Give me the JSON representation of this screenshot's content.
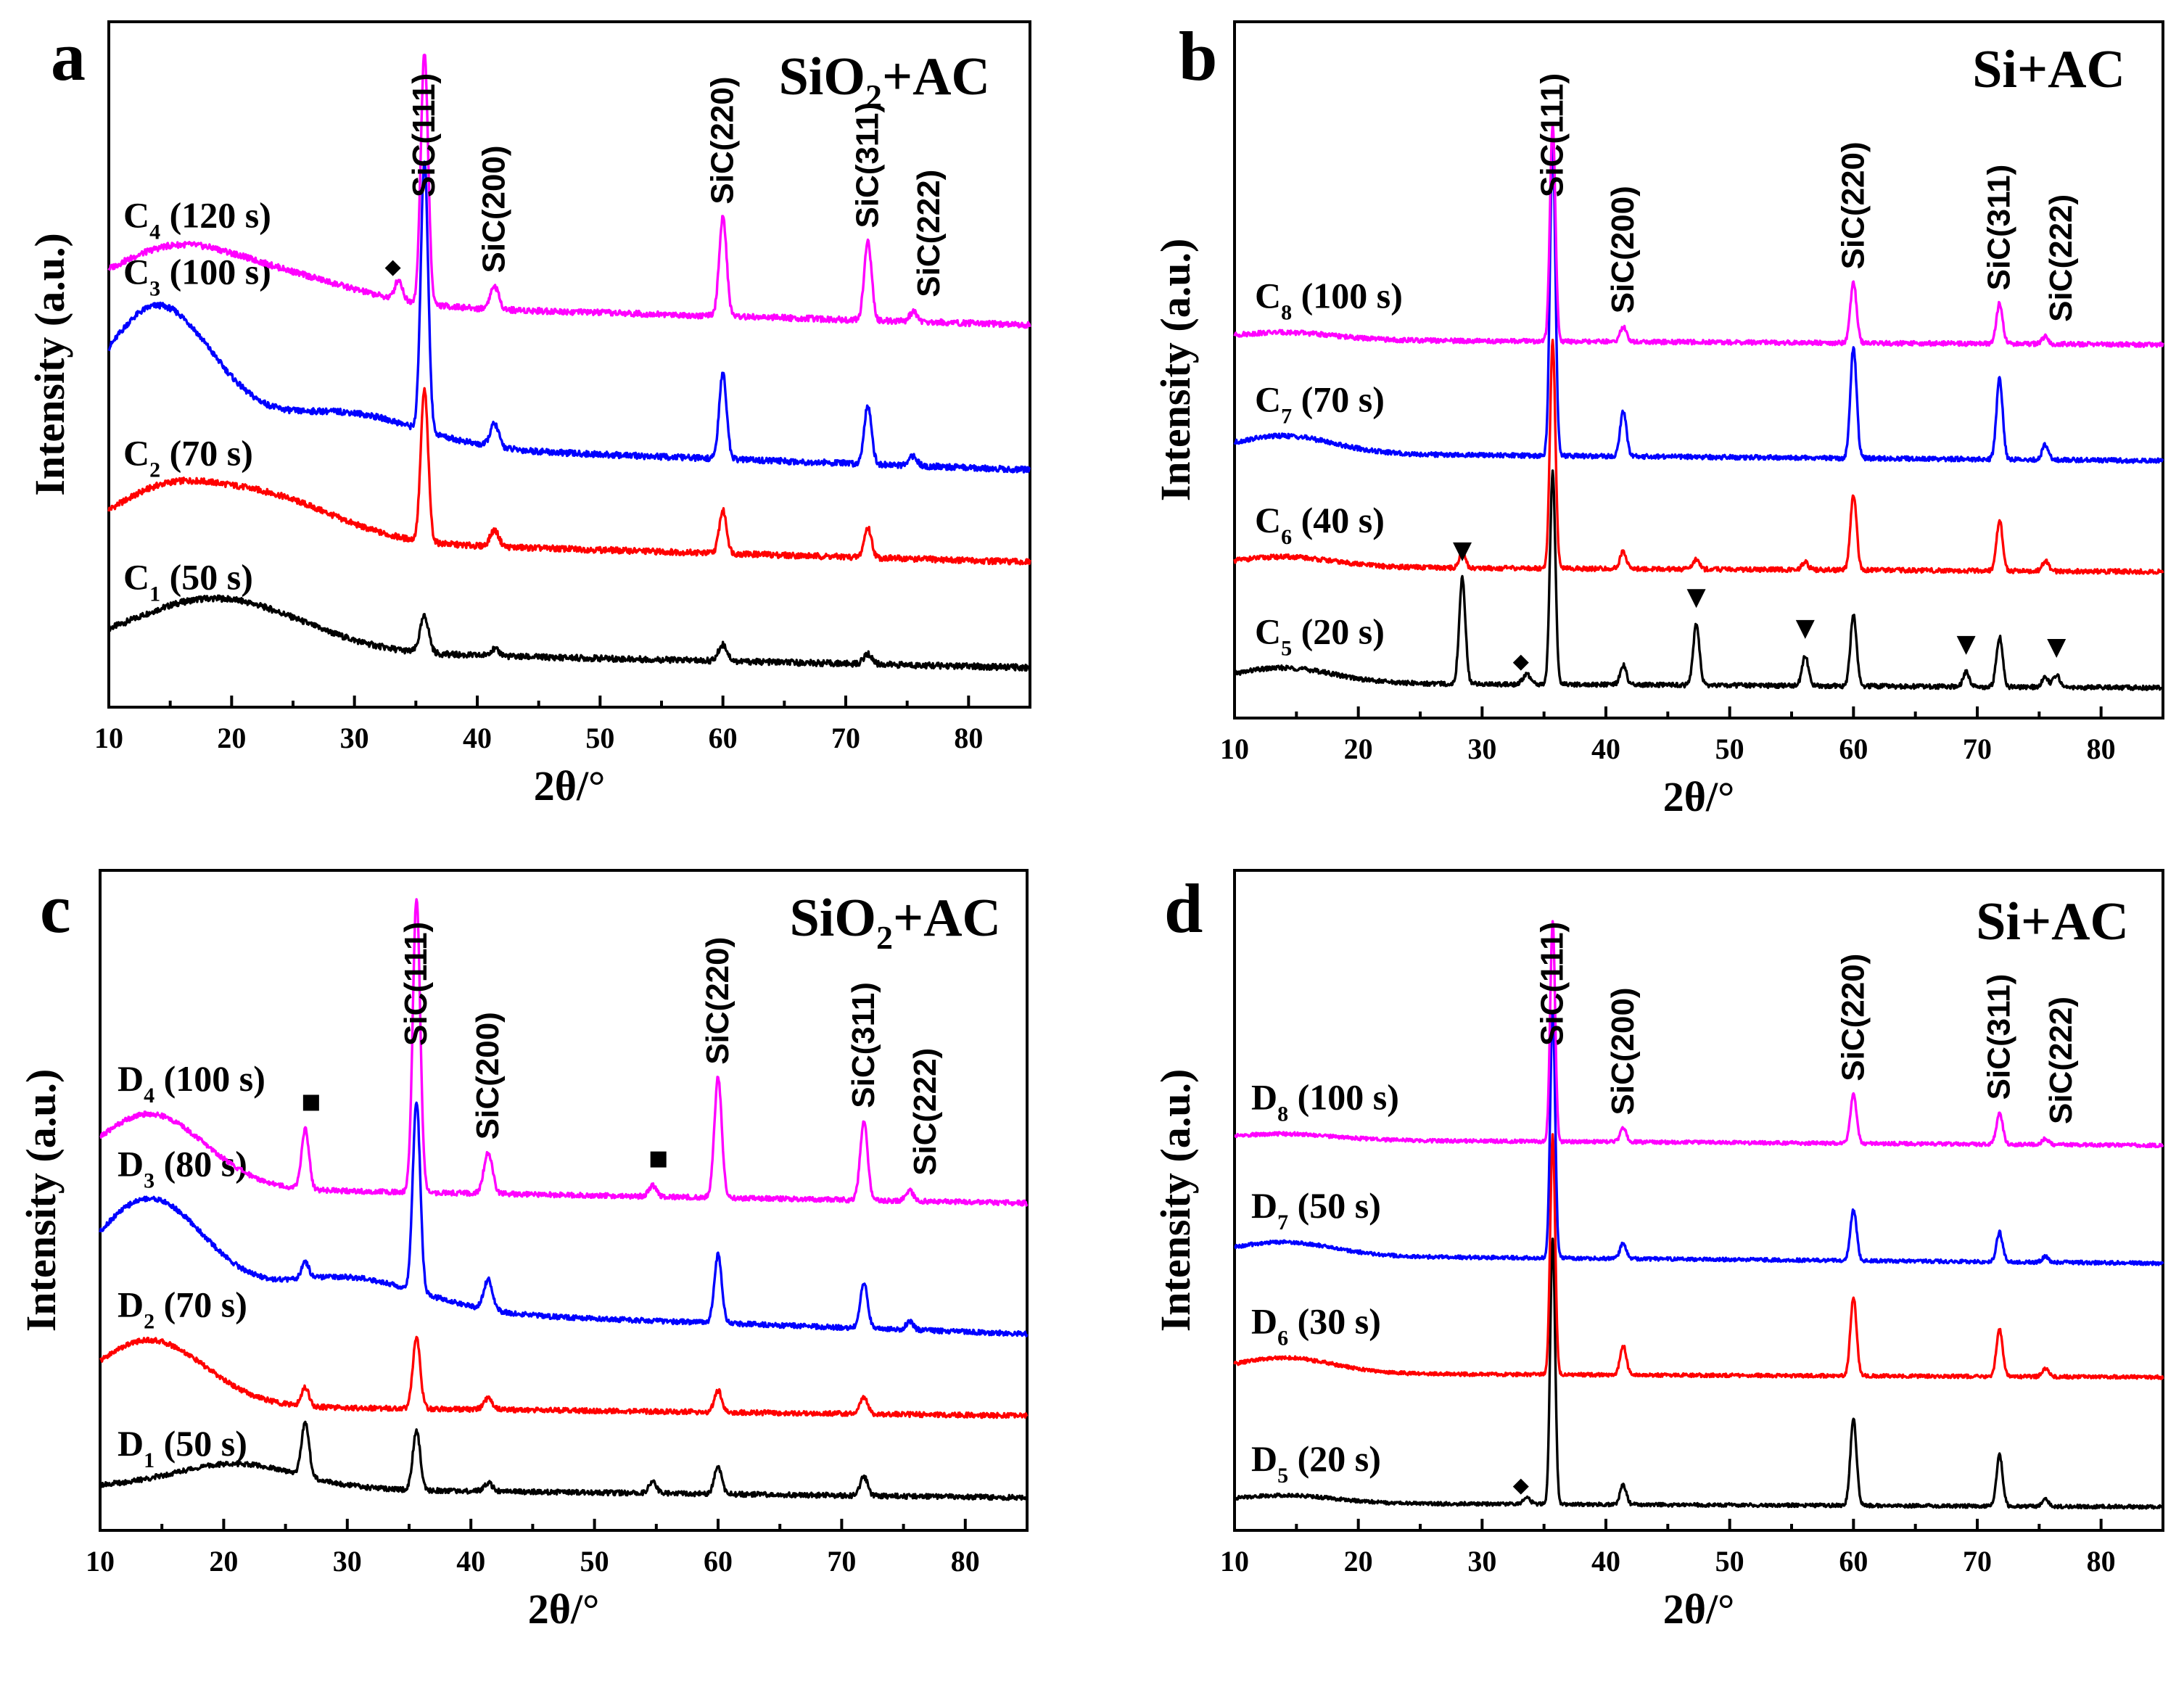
{
  "figure": {
    "x_axis_label": "2θ/°",
    "y_axis_label": "Intensity (a.u.)",
    "legend_marker_glyphs": {
      "diamond": "◆",
      "triangle": "▼",
      "square": "■"
    }
  },
  "chart_data": [
    {
      "panel": "a",
      "type": "line",
      "title": "SiO₂+AC",
      "xlabel": "2θ/°",
      "ylabel": "Intensity (a.u.)",
      "xlim": [
        10,
        85
      ],
      "xticks": [
        10,
        20,
        30,
        40,
        50,
        60,
        70,
        80
      ],
      "ylim": [
        -0.6,
        9.8
      ],
      "series": [
        {
          "name": "C1",
          "label": "C",
          "sub": "1",
          "suffix": " (50 s)",
          "color": "#000000",
          "baseline": 0,
          "slope": 0.3,
          "hump": [
            [
              15,
              0.3,
              5
            ],
            [
              21,
              0.6,
              6
            ]
          ],
          "peaks": [
            [
              35.7,
              0.55,
              0.35
            ],
            [
              41.4,
              0.1,
              0.4
            ],
            [
              60.0,
              0.25,
              0.35
            ],
            [
              71.8,
              0.15,
              0.35
            ]
          ]
        },
        {
          "name": "C2",
          "label": "C",
          "sub": "2",
          "suffix": " (70 s)",
          "color": "#ff0000",
          "baseline": 1.6,
          "slope": 0.4,
          "hump": [
            [
              14,
              0.5,
              4
            ],
            [
              22,
              0.7,
              6
            ]
          ],
          "peaks": [
            [
              35.7,
              2.3,
              0.3
            ],
            [
              41.4,
              0.25,
              0.35
            ],
            [
              60.0,
              0.65,
              0.3
            ],
            [
              71.8,
              0.45,
              0.3
            ]
          ]
        },
        {
          "name": "C3",
          "label": "C",
          "sub": "3",
          "suffix": " (100 s)",
          "color": "#0000ff",
          "baseline": 3.0,
          "slope": 0.5,
          "hump": [
            [
              14,
              2.0,
              4.5
            ],
            [
              29,
              0.5,
              6
            ]
          ],
          "peaks": [
            [
              35.7,
              4.1,
              0.3
            ],
            [
              41.4,
              0.35,
              0.35
            ],
            [
              60.0,
              1.3,
              0.3
            ],
            [
              71.8,
              0.9,
              0.3
            ],
            [
              75.5,
              0.15,
              0.3
            ]
          ]
        },
        {
          "name": "C4",
          "label": "C",
          "sub": "4",
          "suffix": " (120 s)",
          "color": "#ff00ff",
          "baseline": 5.2,
          "slope": 0.4,
          "hump": [
            [
              15,
              0.7,
              5
            ],
            [
              24,
              0.4,
              6
            ]
          ],
          "peaks": [
            [
              33.6,
              0.3,
              0.3
            ],
            [
              35.7,
              3.8,
              0.3
            ],
            [
              41.4,
              0.35,
              0.35
            ],
            [
              60.0,
              1.5,
              0.3
            ],
            [
              71.8,
              1.2,
              0.3
            ],
            [
              75.5,
              0.15,
              0.3
            ]
          ]
        }
      ],
      "peak_labels": [
        {
          "text": "SiC(111)",
          "x": 35.7
        },
        {
          "text": "SiC(200)",
          "x": 41.4
        },
        {
          "text": "SiC(220)",
          "x": 60.0
        },
        {
          "text": "SiC(311)",
          "x": 71.8
        },
        {
          "text": "SiC(222)",
          "x": 75.5
        }
      ],
      "markers": [
        {
          "glyph": "diamond",
          "x": 33.6,
          "series": "C4"
        }
      ]
    },
    {
      "panel": "b",
      "type": "line",
      "title": "Si+AC",
      "xlabel": "2θ/°",
      "ylabel": "Intensity (a.u.)",
      "xlim": [
        10,
        85
      ],
      "xticks": [
        10,
        20,
        30,
        40,
        50,
        60,
        70,
        80
      ],
      "ylim": [
        -0.6,
        13.2
      ],
      "series": [
        {
          "name": "C5",
          "label": "C",
          "sub": "5",
          "suffix": " (20 s)",
          "color": "#000000",
          "baseline": 0,
          "slope": 0.1,
          "hump": [
            [
              14,
              0.3,
              4
            ]
          ],
          "peaks": [
            [
              28.4,
              2.1,
              0.25
            ],
            [
              33.6,
              0.2,
              0.3
            ],
            [
              35.7,
              4.2,
              0.22
            ],
            [
              41.4,
              0.4,
              0.25
            ],
            [
              47.3,
              1.2,
              0.25
            ],
            [
              56.1,
              0.6,
              0.25
            ],
            [
              60.0,
              1.4,
              0.25
            ],
            [
              69.1,
              0.3,
              0.25
            ],
            [
              71.8,
              1.0,
              0.25
            ],
            [
              75.5,
              0.2,
              0.25
            ],
            [
              76.4,
              0.25,
              0.25
            ]
          ]
        },
        {
          "name": "C6",
          "label": "C",
          "sub": "6",
          "suffix": " (40 s)",
          "color": "#ff0000",
          "baseline": 2.3,
          "slope": 0.1,
          "hump": [
            [
              14,
              0.2,
              4
            ]
          ],
          "peaks": [
            [
              28.4,
              0.3,
              0.25
            ],
            [
              35.7,
              4.5,
              0.22
            ],
            [
              41.4,
              0.35,
              0.25
            ],
            [
              47.3,
              0.2,
              0.25
            ],
            [
              56.1,
              0.15,
              0.25
            ],
            [
              60.0,
              1.5,
              0.25
            ],
            [
              71.8,
              1.0,
              0.25
            ],
            [
              75.5,
              0.2,
              0.25
            ]
          ]
        },
        {
          "name": "C7",
          "label": "C",
          "sub": "7",
          "suffix": " (70 s)",
          "color": "#0000ff",
          "baseline": 4.5,
          "slope": 0.15,
          "hump": [
            [
              14,
              0.35,
              4
            ]
          ],
          "peaks": [
            [
              35.7,
              6.2,
              0.22
            ],
            [
              41.4,
              0.9,
              0.25
            ],
            [
              60.0,
              2.2,
              0.25
            ],
            [
              71.8,
              1.6,
              0.25
            ],
            [
              75.5,
              0.3,
              0.25
            ]
          ]
        },
        {
          "name": "C8",
          "label": "C",
          "sub": "8",
          "suffix": " (100 s)",
          "color": "#ff00ff",
          "baseline": 6.8,
          "slope": 0.1,
          "hump": [
            [
              14,
              0.15,
              4
            ]
          ],
          "peaks": [
            [
              35.7,
              4.3,
              0.22
            ],
            [
              41.4,
              0.3,
              0.25
            ],
            [
              60.0,
              1.2,
              0.25
            ],
            [
              71.8,
              0.8,
              0.25
            ],
            [
              75.5,
              0.15,
              0.25
            ]
          ]
        }
      ],
      "peak_labels": [
        {
          "text": "SiC(111)",
          "x": 35.7
        },
        {
          "text": "SiC(200)",
          "x": 41.4
        },
        {
          "text": "SiC(220)",
          "x": 60.0
        },
        {
          "text": "SiC(311)",
          "x": 71.8
        },
        {
          "text": "SiC(222)",
          "x": 75.5
        }
      ],
      "markers": [
        {
          "glyph": "triangle",
          "x": 28.4,
          "series": "C5"
        },
        {
          "glyph": "diamond",
          "x": 33.6,
          "series": "C5"
        },
        {
          "glyph": "triangle",
          "x": 47.3,
          "series": "C5"
        },
        {
          "glyph": "triangle",
          "x": 56.1,
          "series": "C5"
        },
        {
          "glyph": "triangle",
          "x": 69.1,
          "series": "C5"
        },
        {
          "glyph": "triangle",
          "x": 76.4,
          "series": "C5"
        }
      ]
    },
    {
      "panel": "c",
      "type": "line",
      "title": "SiO₂+AC",
      "xlabel": "2θ/°",
      "ylabel": "Intensity (a.u.)",
      "xlim": [
        10,
        85
      ],
      "xticks": [
        10,
        20,
        30,
        40,
        50,
        60,
        70,
        80
      ],
      "ylim": [
        -0.6,
        11.5
      ],
      "series": [
        {
          "name": "D1",
          "label": "D",
          "sub": "1",
          "suffix": " (50 s)",
          "color": "#000000",
          "baseline": 0,
          "slope": 0.2,
          "hump": [
            [
              21,
              0.45,
              5
            ]
          ],
          "peaks": [
            [
              26.6,
              1.0,
              0.3
            ],
            [
              35.6,
              1.1,
              0.3
            ],
            [
              41.4,
              0.15,
              0.35
            ],
            [
              54.7,
              0.2,
              0.3
            ],
            [
              60.0,
              0.5,
              0.3
            ],
            [
              71.8,
              0.35,
              0.3
            ]
          ]
        },
        {
          "name": "D2",
          "label": "D",
          "sub": "2",
          "suffix": " (70 s)",
          "color": "#ff0000",
          "baseline": 1.5,
          "slope": 0.2,
          "hump": [
            [
              14,
              1.2,
              4.5
            ]
          ],
          "peaks": [
            [
              26.6,
              0.35,
              0.3
            ],
            [
              35.6,
              1.3,
              0.3
            ],
            [
              41.4,
              0.2,
              0.35
            ],
            [
              60.0,
              0.4,
              0.3
            ],
            [
              71.8,
              0.3,
              0.3
            ]
          ]
        },
        {
          "name": "D3",
          "label": "D",
          "sub": "3",
          "suffix": " (80 s)",
          "color": "#0000ff",
          "baseline": 3.0,
          "slope": 0.6,
          "hump": [
            [
              14,
              1.9,
              4.5
            ],
            [
              30,
              0.6,
              6
            ]
          ],
          "peaks": [
            [
              26.6,
              0.3,
              0.3
            ],
            [
              35.6,
              3.5,
              0.3
            ],
            [
              41.4,
              0.55,
              0.35
            ],
            [
              60.0,
              1.25,
              0.3
            ],
            [
              71.8,
              0.85,
              0.3
            ],
            [
              75.5,
              0.15,
              0.3
            ]
          ]
        },
        {
          "name": "D4",
          "label": "D",
          "sub": "4",
          "suffix": " (100 s)",
          "color": "#ff00ff",
          "baseline": 5.4,
          "slope": 0.3,
          "hump": [
            [
              14,
              1.35,
              4.5
            ]
          ],
          "peaks": [
            [
              26.6,
              1.1,
              0.3
            ],
            [
              35.6,
              5.4,
              0.3
            ],
            [
              41.4,
              0.75,
              0.35
            ],
            [
              54.7,
              0.2,
              0.3
            ],
            [
              60.0,
              2.2,
              0.3
            ],
            [
              71.8,
              1.45,
              0.3
            ],
            [
              75.5,
              0.2,
              0.3
            ]
          ]
        }
      ],
      "peak_labels": [
        {
          "text": "SiC(111)",
          "x": 35.6
        },
        {
          "text": "SiC(200)",
          "x": 41.4
        },
        {
          "text": "SiC(220)",
          "x": 60.0
        },
        {
          "text": "SiC(311)",
          "x": 71.8
        },
        {
          "text": "SiC(222)",
          "x": 75.5
        }
      ],
      "markers": [
        {
          "glyph": "square",
          "x": 26.6,
          "series": "D4"
        },
        {
          "glyph": "square",
          "x": 54.7,
          "series": "D4"
        }
      ]
    },
    {
      "panel": "d",
      "type": "line",
      "title": "Si+AC",
      "xlabel": "2θ/°",
      "ylabel": "Intensity (a.u.)",
      "xlim": [
        10,
        85
      ],
      "xticks": [
        10,
        20,
        30,
        40,
        50,
        60,
        70,
        80
      ],
      "ylim": [
        -0.6,
        16.2
      ],
      "series": [
        {
          "name": "D5",
          "label": "D",
          "sub": "5",
          "suffix": " (20 s)",
          "color": "#000000",
          "baseline": 0,
          "slope": 0.1,
          "hump": [
            [
              14,
              0.2,
              4
            ]
          ],
          "peaks": [
            [
              33.6,
              0.15,
              0.3
            ],
            [
              35.7,
              6.8,
              0.2
            ],
            [
              41.4,
              0.5,
              0.25
            ],
            [
              60.0,
              2.2,
              0.25
            ],
            [
              71.8,
              1.3,
              0.25
            ],
            [
              75.5,
              0.2,
              0.25
            ]
          ]
        },
        {
          "name": "D6",
          "label": "D",
          "sub": "6",
          "suffix": " (30 s)",
          "color": "#ff0000",
          "baseline": 3.3,
          "slope": 0.1,
          "hump": [
            [
              14,
              0.4,
              4
            ]
          ],
          "peaks": [
            [
              35.7,
              6.1,
              0.2
            ],
            [
              41.4,
              0.75,
              0.25
            ],
            [
              60.0,
              2.0,
              0.25
            ],
            [
              71.8,
              1.2,
              0.25
            ],
            [
              75.5,
              0.2,
              0.25
            ]
          ]
        },
        {
          "name": "D7",
          "label": "D",
          "sub": "7",
          "suffix": " (50 s)",
          "color": "#0000ff",
          "baseline": 6.2,
          "slope": 0.2,
          "hump": [
            [
              14,
              0.35,
              4
            ]
          ],
          "peaks": [
            [
              35.7,
              6.3,
              0.2
            ],
            [
              41.4,
              0.4,
              0.25
            ],
            [
              60.0,
              1.3,
              0.25
            ],
            [
              71.8,
              0.75,
              0.25
            ],
            [
              75.5,
              0.15,
              0.25
            ]
          ]
        },
        {
          "name": "D8",
          "label": "D",
          "sub": "8",
          "suffix": " (100 s)",
          "color": "#ff00ff",
          "baseline": 9.2,
          "slope": 0.15,
          "hump": [
            [
              14,
              0.15,
              4
            ]
          ],
          "peaks": [
            [
              35.7,
              5.6,
              0.2
            ],
            [
              41.4,
              0.35,
              0.25
            ],
            [
              60.0,
              1.25,
              0.25
            ],
            [
              71.8,
              0.8,
              0.25
            ],
            [
              75.5,
              0.15,
              0.25
            ]
          ]
        }
      ],
      "peak_labels": [
        {
          "text": "SiC(111)",
          "x": 35.7
        },
        {
          "text": "SiC(200)",
          "x": 41.4
        },
        {
          "text": "SiC(220)",
          "x": 60.0
        },
        {
          "text": "SiC(311)",
          "x": 71.8
        },
        {
          "text": "SiC(222)",
          "x": 75.5
        }
      ],
      "markers": [
        {
          "glyph": "diamond",
          "x": 33.6,
          "series": "D5"
        }
      ]
    }
  ]
}
